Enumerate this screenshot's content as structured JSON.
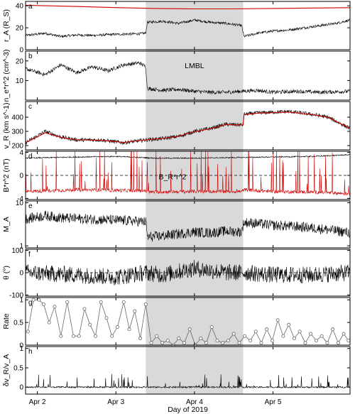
{
  "chart_data": {
    "type": "line",
    "xlabel": "Day of 2019",
    "xticks": [
      "Apr 2",
      "Apr 3",
      "Apr 4",
      "Apr 5"
    ],
    "xticks_day": [
      2,
      3,
      4,
      5
    ],
    "xlim_day": [
      1.85,
      5.98
    ],
    "shaded_day_range": [
      3.38,
      4.62
    ],
    "shaded_label": "LMBL",
    "shade_color": "#d9d9d9",
    "panels": [
      {
        "letter": "a",
        "ylabel": "r_A (R_S)",
        "ylim": [
          0,
          44
        ],
        "yticks": [
          0,
          20,
          40
        ],
        "series": [
          {
            "color": "#d00000",
            "points": [
              [
                1.85,
                40.5
              ],
              [
                2.5,
                39.4
              ],
              [
                3.0,
                38.4
              ],
              [
                3.5,
                37.6
              ],
              [
                4.0,
                37.2
              ],
              [
                4.5,
                37.2
              ],
              [
                5.0,
                37.6
              ],
              [
                5.5,
                38.0
              ],
              [
                5.98,
                38.3
              ]
            ]
          },
          {
            "color": "#000000",
            "noisy": true,
            "noise": 1.2,
            "points": [
              [
                1.85,
                13
              ],
              [
                2.1,
                15
              ],
              [
                2.3,
                12
              ],
              [
                2.5,
                13.5
              ],
              [
                2.7,
                13
              ],
              [
                3.0,
                14
              ],
              [
                3.3,
                14.5
              ],
              [
                3.38,
                15
              ],
              [
                3.4,
                25
              ],
              [
                3.6,
                26
              ],
              [
                3.8,
                24
              ],
              [
                4.0,
                27
              ],
              [
                4.2,
                25
              ],
              [
                4.4,
                24
              ],
              [
                4.6,
                22
              ],
              [
                4.63,
                12
              ],
              [
                4.8,
                15
              ],
              [
                5.0,
                17
              ],
              [
                5.2,
                18
              ],
              [
                5.5,
                21
              ],
              [
                5.8,
                24
              ],
              [
                5.98,
                27
              ]
            ]
          }
        ]
      },
      {
        "letter": "b",
        "ylabel": "n_e*r^2 (cm^-3)",
        "ylim": [
          0,
          25
        ],
        "yticks": [
          10,
          20
        ],
        "annotation": "LMBL",
        "series": [
          {
            "color": "#000000",
            "noisy": true,
            "noise": 1.0,
            "points": [
              [
                1.85,
                16
              ],
              [
                2.1,
                13
              ],
              [
                2.3,
                18
              ],
              [
                2.5,
                14
              ],
              [
                2.7,
                17
              ],
              [
                2.9,
                15
              ],
              [
                3.1,
                18
              ],
              [
                3.3,
                19
              ],
              [
                3.38,
                17
              ],
              [
                3.4,
                6
              ],
              [
                3.6,
                5
              ],
              [
                3.8,
                5.5
              ],
              [
                4.0,
                4.5
              ],
              [
                4.2,
                4
              ],
              [
                4.4,
                4
              ],
              [
                4.6,
                4.5
              ],
              [
                4.8,
                5
              ],
              [
                5.0,
                4
              ],
              [
                5.3,
                4.5
              ],
              [
                5.6,
                4
              ],
              [
                5.98,
                4.5
              ]
            ]
          }
        ]
      },
      {
        "letter": "c",
        "ylabel": "v_R (km s^-1)",
        "ylim": [
          170,
          510
        ],
        "yticks": [
          200,
          300,
          400
        ],
        "series": [
          {
            "color": "#000000",
            "noisy": true,
            "noise": 14,
            "points": [
              [
                1.85,
                220
              ],
              [
                2.1,
                300
              ],
              [
                2.3,
                260
              ],
              [
                2.5,
                240
              ],
              [
                2.8,
                240
              ],
              [
                3.1,
                220
              ],
              [
                3.38,
                240
              ],
              [
                3.6,
                250
              ],
              [
                3.8,
                265
              ],
              [
                4.0,
                300
              ],
              [
                4.2,
                320
              ],
              [
                4.4,
                350
              ],
              [
                4.62,
                345
              ],
              [
                4.63,
                420
              ],
              [
                4.8,
                430
              ],
              [
                5.0,
                435
              ],
              [
                5.2,
                440
              ],
              [
                5.5,
                420
              ],
              [
                5.7,
                400
              ],
              [
                5.98,
                320
              ]
            ]
          },
          {
            "color": "#d00000",
            "points": [
              [
                1.85,
                220
              ],
              [
                2.1,
                290
              ],
              [
                2.3,
                258
              ],
              [
                2.5,
                240
              ],
              [
                2.8,
                238
              ],
              [
                3.1,
                222
              ],
              [
                3.38,
                240
              ],
              [
                3.6,
                250
              ],
              [
                3.8,
                265
              ],
              [
                4.0,
                298
              ],
              [
                4.2,
                318
              ],
              [
                4.4,
                348
              ],
              [
                4.62,
                345
              ],
              [
                4.63,
                418
              ],
              [
                4.8,
                428
              ],
              [
                5.0,
                432
              ],
              [
                5.2,
                436
              ],
              [
                5.5,
                418
              ],
              [
                5.7,
                398
              ],
              [
                5.98,
                322
              ]
            ]
          }
        ]
      },
      {
        "letter": "d",
        "ylabel": "B*r^2 (nT)",
        "ylim": [
          -4.2,
          4.2
        ],
        "yticks": [
          -4,
          0,
          4
        ],
        "zero_line": true,
        "annotation": "B_R*r^2",
        "annotation_color": "#d00000",
        "series": [
          {
            "color": "#000000",
            "noisy": true,
            "noise": 0.1,
            "points": [
              [
                1.85,
                3.0
              ],
              [
                2.5,
                3.2
              ],
              [
                3.0,
                3.3
              ],
              [
                3.5,
                3.0
              ],
              [
                4.0,
                3.0
              ],
              [
                4.5,
                3.1
              ],
              [
                5.0,
                3.2
              ],
              [
                5.5,
                3.3
              ],
              [
                5.98,
                3.6
              ]
            ]
          },
          {
            "color": "#d00000",
            "noisy": true,
            "noise": 0.3,
            "spikes": true,
            "points": [
              [
                1.85,
                -2.8
              ],
              [
                2.5,
                -2.5
              ],
              [
                3.0,
                -2.6
              ],
              [
                3.38,
                -2.7
              ],
              [
                3.4,
                -2.9
              ],
              [
                4.0,
                -2.8
              ],
              [
                4.6,
                -2.8
              ],
              [
                4.63,
                -2.5
              ],
              [
                5.0,
                -2.8
              ],
              [
                5.5,
                -2.9
              ],
              [
                5.98,
                -3.2
              ]
            ]
          }
        ]
      },
      {
        "letter": "e",
        "ylabel": "M_A",
        "ylim": [
          0.9,
          11
        ],
        "yticks": [
          1,
          10
        ],
        "log": true,
        "series": [
          {
            "color": "#000000",
            "noisy": true,
            "noise": 0.06,
            "points": [
              [
                1.85,
                4.2
              ],
              [
                2.1,
                5.0
              ],
              [
                2.3,
                4.5
              ],
              [
                2.6,
                4.2
              ],
              [
                2.9,
                4.0
              ],
              [
                3.2,
                3.8
              ],
              [
                3.38,
                3.6
              ],
              [
                3.4,
                1.6
              ],
              [
                3.6,
                1.7
              ],
              [
                3.8,
                1.9
              ],
              [
                4.0,
                2.1
              ],
              [
                4.2,
                2.0
              ],
              [
                4.4,
                2.2
              ],
              [
                4.6,
                2.1
              ],
              [
                4.63,
                3.5
              ],
              [
                4.8,
                3.3
              ],
              [
                5.0,
                3.0
              ],
              [
                5.3,
                2.8
              ],
              [
                5.6,
                2.5
              ],
              [
                5.98,
                2.0
              ]
            ]
          }
        ]
      },
      {
        "letter": "f",
        "ylabel": "θ (°)",
        "ylim": [
          -105,
          105
        ],
        "yticks": [
          -100,
          0,
          100
        ],
        "zero_line": true,
        "series": [
          {
            "color": "#000000",
            "noisy": true,
            "noise": 38,
            "points": [
              [
                1.85,
                0
              ],
              [
                2.5,
                -10
              ],
              [
                3.0,
                -20
              ],
              [
                3.38,
                0
              ],
              [
                3.6,
                -10
              ],
              [
                4.0,
                20
              ],
              [
                4.4,
                0
              ],
              [
                4.63,
                0
              ],
              [
                5.0,
                -10
              ],
              [
                5.5,
                -10
              ],
              [
                5.98,
                0
              ]
            ]
          }
        ]
      },
      {
        "letter": "g",
        "ylabel": "Rate",
        "ylim": [
          0,
          1.05
        ],
        "yticks": [
          0.0,
          0.5,
          1.0
        ],
        "series": [
          {
            "color": "#666666",
            "markers": true,
            "points": [
              [
                1.88,
                0.3
              ],
              [
                1.95,
                1.0
              ],
              [
                2.02,
                1.0
              ],
              [
                2.08,
                0.9
              ],
              [
                2.15,
                0.5
              ],
              [
                2.22,
                0.85
              ],
              [
                2.3,
                0.2
              ],
              [
                2.38,
                0.95
              ],
              [
                2.46,
                0.2
              ],
              [
                2.53,
                0.2
              ],
              [
                2.6,
                0.8
              ],
              [
                2.67,
                0.45
              ],
              [
                2.74,
                0.2
              ],
              [
                2.81,
                0.95
              ],
              [
                2.88,
                0.6
              ],
              [
                2.95,
                0.2
              ],
              [
                3.02,
                0.4
              ],
              [
                3.1,
                0.95
              ],
              [
                3.17,
                0.35
              ],
              [
                3.24,
                0.75
              ],
              [
                3.31,
                0.15
              ],
              [
                3.38,
                0.9
              ],
              [
                3.45,
                0.05
              ],
              [
                3.52,
                0.2
              ],
              [
                3.59,
                0.05
              ],
              [
                3.66,
                0.1
              ],
              [
                3.73,
                0.0
              ],
              [
                3.8,
                0.15
              ],
              [
                3.87,
                0.05
              ],
              [
                3.94,
                0.35
              ],
              [
                4.01,
                0.0
              ],
              [
                4.08,
                0.15
              ],
              [
                4.15,
                0.05
              ],
              [
                4.22,
                0.4
              ],
              [
                4.29,
                0.1
              ],
              [
                4.36,
                0.05
              ],
              [
                4.43,
                0.1
              ],
              [
                4.5,
                0.25
              ],
              [
                4.57,
                0.05
              ],
              [
                4.64,
                0.2
              ],
              [
                4.71,
                0.1
              ],
              [
                4.78,
                0.3
              ],
              [
                4.85,
                0.05
              ],
              [
                4.92,
                0.35
              ],
              [
                4.99,
                0.1
              ],
              [
                5.06,
                0.55
              ],
              [
                5.13,
                0.2
              ],
              [
                5.2,
                0.45
              ],
              [
                5.27,
                0.15
              ],
              [
                5.34,
                0.3
              ],
              [
                5.41,
                0.05
              ],
              [
                5.48,
                0.25
              ],
              [
                5.55,
                0.1
              ],
              [
                5.62,
                0.2
              ],
              [
                5.69,
                0.05
              ],
              [
                5.76,
                0.35
              ],
              [
                5.83,
                0.05
              ],
              [
                5.9,
                0.25
              ],
              [
                5.96,
                0.1
              ]
            ]
          }
        ]
      },
      {
        "letter": "h",
        "ylabel": "δv_R/v_A",
        "ylim": [
          -0.18,
          1.05
        ],
        "yticks": [
          0.0,
          0.5,
          1.0
        ],
        "series": [
          {
            "color": "#000000",
            "noisy": true,
            "noise": 0.02,
            "spikes": true,
            "spike_sign": 1,
            "spike_scale": 0.55,
            "points": [
              [
                1.85,
                0.0
              ],
              [
                3.0,
                0.0
              ],
              [
                3.38,
                0.0
              ],
              [
                4.0,
                0.0
              ],
              [
                4.63,
                0.0
              ],
              [
                5.98,
                0.0
              ]
            ]
          }
        ]
      }
    ]
  }
}
